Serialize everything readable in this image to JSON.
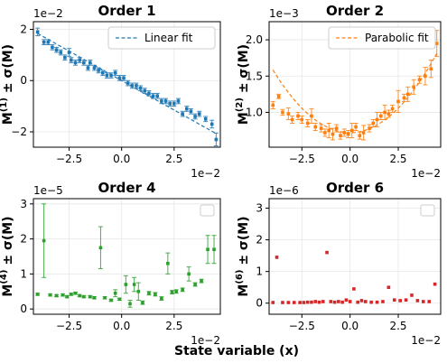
{
  "figure": {
    "xlabel": "State variable (x)",
    "x_exponent": "1e−2"
  },
  "chart_data": [
    {
      "type": "scatter",
      "title": "Order 1",
      "ylabel_main": "M",
      "ylabel_sup": "(1)",
      "ylabel_rest": " ± σ(M)",
      "y_exponent": "1e−2",
      "color": "#1f77b4",
      "xlim": [
        -4.2,
        4.7
      ],
      "ylim": [
        -2.6,
        2.3
      ],
      "xticks": [
        -2.5,
        0.0,
        2.5
      ],
      "xtick_labels": [
        "−2.5",
        "0.0",
        "2.5"
      ],
      "yticks": [
        -2,
        0,
        2
      ],
      "ytick_labels": [
        "−2",
        "0",
        "2"
      ],
      "legend": {
        "label": "Linear fit",
        "style": "dashed",
        "location": "top-right"
      },
      "fit": {
        "type": "linear",
        "slope": -0.46,
        "intercept": 0.0
      },
      "x": [
        -4.0,
        -3.7,
        -3.5,
        -3.3,
        -3.1,
        -2.9,
        -2.7,
        -2.5,
        -2.4,
        -2.2,
        -2.0,
        -1.8,
        -1.6,
        -1.5,
        -1.3,
        -1.1,
        -0.9,
        -0.7,
        -0.5,
        -0.3,
        -0.1,
        0.1,
        0.3,
        0.5,
        0.7,
        0.9,
        1.1,
        1.3,
        1.5,
        1.7,
        1.9,
        2.1,
        2.3,
        2.5,
        2.7,
        2.9,
        3.1,
        3.3,
        3.5,
        3.7,
        4.0,
        4.3,
        4.5
      ],
      "y": [
        1.9,
        1.5,
        1.5,
        1.3,
        1.2,
        1.1,
        0.9,
        1.1,
        0.8,
        0.7,
        0.8,
        0.7,
        0.5,
        0.7,
        0.5,
        0.4,
        0.3,
        0.2,
        0.2,
        0.3,
        0.1,
        0.1,
        -0.1,
        -0.2,
        -0.2,
        -0.3,
        -0.4,
        -0.5,
        -0.6,
        -0.6,
        -0.8,
        -0.8,
        -0.9,
        -0.9,
        -0.8,
        -1.3,
        -1.1,
        -1.2,
        -1.4,
        -1.3,
        -1.5,
        -1.7,
        -2.3
      ],
      "yerr": [
        0.15,
        0.1,
        0.1,
        0.1,
        0.1,
        0.1,
        0.1,
        0.15,
        0.1,
        0.1,
        0.1,
        0.1,
        0.1,
        0.1,
        0.1,
        0.1,
        0.1,
        0.1,
        0.1,
        0.1,
        0.1,
        0.1,
        0.1,
        0.1,
        0.1,
        0.1,
        0.1,
        0.1,
        0.1,
        0.1,
        0.1,
        0.1,
        0.1,
        0.1,
        0.1,
        0.1,
        0.1,
        0.1,
        0.1,
        0.1,
        0.1,
        0.15,
        0.25
      ]
    },
    {
      "type": "scatter",
      "title": "Order 2",
      "ylabel_main": "M",
      "ylabel_sup": "(2)",
      "ylabel_rest": " ± σ(M)",
      "y_exponent": "1e−3",
      "color": "#ff7f0e",
      "xlim": [
        -4.2,
        4.7
      ],
      "ylim": [
        0.52,
        2.25
      ],
      "xticks": [
        -2.5,
        0.0,
        2.5
      ],
      "xtick_labels": [
        "−2.5",
        "0.0",
        "2.5"
      ],
      "yticks": [
        1.0,
        1.5,
        2.0
      ],
      "ytick_labels": [
        "1.0",
        "1.5",
        "2.0"
      ],
      "legend": {
        "label": "Parabolic fit",
        "style": "dashed",
        "location": "top-right"
      },
      "fit": {
        "type": "quadratic",
        "a": 0.054,
        "b": 0.0,
        "c": 0.72
      },
      "x": [
        -4.0,
        -3.7,
        -3.5,
        -3.2,
        -3.0,
        -2.7,
        -2.5,
        -2.2,
        -2.0,
        -1.8,
        -1.5,
        -1.3,
        -1.1,
        -0.9,
        -0.7,
        -0.5,
        -0.3,
        -0.1,
        0.1,
        0.3,
        0.5,
        0.7,
        1.0,
        1.2,
        1.4,
        1.6,
        1.8,
        2.0,
        2.2,
        2.5,
        2.8,
        3.0,
        3.3,
        3.6,
        3.9,
        4.2,
        4.5
      ],
      "y": [
        1.1,
        1.22,
        1.0,
        0.98,
        0.9,
        0.95,
        0.9,
        0.85,
        0.95,
        0.8,
        0.78,
        0.72,
        0.75,
        0.7,
        0.78,
        0.68,
        0.72,
        0.7,
        0.75,
        0.8,
        0.68,
        0.72,
        0.78,
        0.85,
        0.9,
        0.95,
        1.0,
        0.98,
        1.05,
        1.15,
        1.2,
        1.25,
        1.35,
        1.45,
        1.5,
        1.6,
        1.95
      ],
      "yerr": [
        0.05,
        0.03,
        0.04,
        0.08,
        0.05,
        0.05,
        0.05,
        0.05,
        0.1,
        0.05,
        0.05,
        0.05,
        0.1,
        0.08,
        0.05,
        0.05,
        0.05,
        0.05,
        0.1,
        0.05,
        0.05,
        0.1,
        0.05,
        0.05,
        0.1,
        0.05,
        0.1,
        0.05,
        0.05,
        0.15,
        0.05,
        0.1,
        0.1,
        0.05,
        0.12,
        0.12,
        0.18
      ]
    },
    {
      "type": "scatter",
      "title": "Order 4",
      "ylabel_main": "M",
      "ylabel_sup": "(4)",
      "ylabel_rest": " ± σ(M)",
      "y_exponent": "1e−5",
      "color": "#2ca02c",
      "xlim": [
        -4.2,
        4.7
      ],
      "ylim": [
        -0.15,
        3.15
      ],
      "xticks": [
        -2.5,
        0.0,
        2.5
      ],
      "xtick_labels": [
        "−2.5",
        "0.0",
        "2.5"
      ],
      "yticks": [
        0,
        1,
        2,
        3
      ],
      "ytick_labels": [
        "0",
        "1",
        "2",
        "3"
      ],
      "legend": {
        "label": "",
        "style": "empty",
        "location": "top-right"
      },
      "x": [
        -4.0,
        -3.7,
        -3.4,
        -3.1,
        -2.8,
        -2.6,
        -2.4,
        -2.2,
        -2.0,
        -1.8,
        -1.5,
        -1.3,
        -1.0,
        -0.8,
        -0.5,
        -0.3,
        -0.1,
        0.2,
        0.4,
        0.6,
        0.8,
        1.0,
        1.3,
        1.6,
        1.9,
        2.2,
        2.4,
        2.6,
        2.9,
        3.2,
        3.5,
        3.8,
        4.1,
        4.4
      ],
      "y": [
        0.42,
        1.95,
        0.4,
        0.38,
        0.4,
        0.35,
        0.42,
        0.45,
        0.38,
        0.35,
        0.35,
        0.32,
        1.75,
        0.32,
        0.25,
        0.45,
        0.28,
        0.7,
        0.15,
        0.7,
        0.5,
        0.18,
        0.45,
        0.42,
        0.3,
        1.3,
        0.48,
        0.5,
        0.55,
        1.0,
        0.7,
        0.8,
        1.7,
        1.7
      ],
      "yerr": [
        0.03,
        1.05,
        0.03,
        0.03,
        0.03,
        0.03,
        0.03,
        0.03,
        0.03,
        0.03,
        0.03,
        0.03,
        0.6,
        0.03,
        0.03,
        0.1,
        0.03,
        0.25,
        0.1,
        0.2,
        0.25,
        0.05,
        0.05,
        0.05,
        0.05,
        0.3,
        0.05,
        0.05,
        0.05,
        0.2,
        0.05,
        0.05,
        0.4,
        0.4
      ]
    },
    {
      "type": "scatter",
      "title": "Order 6",
      "ylabel_main": "M",
      "ylabel_sup": "(6)",
      "ylabel_rest": " ± σ(M)",
      "y_exponent": "1e−6",
      "color": "#d62728",
      "xlim": [
        -4.2,
        4.7
      ],
      "ylim": [
        -0.35,
        3.3
      ],
      "xticks": [
        -2.5,
        0.0,
        2.5
      ],
      "xtick_labels": [
        "−2.5",
        "0.0",
        "2.5"
      ],
      "yticks": [
        0,
        1,
        2,
        3
      ],
      "ytick_labels": [
        "0",
        "1",
        "2",
        "3"
      ],
      "legend": {
        "label": "",
        "style": "empty",
        "location": "top-right"
      },
      "x": [
        -4.0,
        -3.8,
        -3.5,
        -3.2,
        -2.9,
        -2.6,
        -2.4,
        -2.2,
        -2.0,
        -1.8,
        -1.6,
        -1.4,
        -1.2,
        -1.0,
        -0.8,
        -0.6,
        -0.4,
        -0.2,
        0.0,
        0.2,
        0.4,
        0.6,
        0.8,
        1.1,
        1.4,
        1.7,
        2.0,
        2.3,
        2.6,
        2.9,
        3.2,
        3.5,
        3.8,
        4.1,
        4.4
      ],
      "y": [
        0.02,
        1.45,
        0.02,
        0.02,
        0.02,
        0.02,
        0.02,
        0.03,
        0.03,
        0.05,
        0.03,
        0.05,
        1.6,
        0.05,
        0.03,
        0.05,
        0.03,
        0.1,
        0.05,
        0.45,
        0.03,
        0.08,
        0.05,
        0.03,
        0.03,
        0.05,
        0.5,
        0.1,
        0.08,
        0.1,
        0.25,
        0.08,
        0.05,
        0.05,
        0.6
      ]
    }
  ]
}
